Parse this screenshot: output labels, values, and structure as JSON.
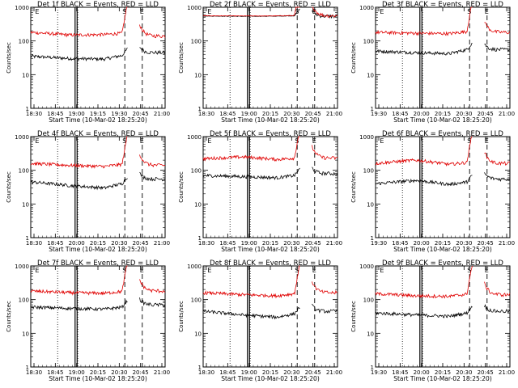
{
  "colors": {
    "events": "#000000",
    "lld": "#e00000",
    "axis": "#000000",
    "background": "#ffffff"
  },
  "chart_data": [
    {
      "type": "line",
      "title": "Det 1f BLACK = Events, RED = LLD",
      "xlabel": "Start Time (10-Mar-02 18:25:20)",
      "ylabel": "Counts/sec",
      "x_tick_labels": [
        "18:30",
        "18:45",
        "19:00",
        "19:15",
        "19:30",
        "20:45",
        "21:00"
      ],
      "y_tick_labels": [
        "1",
        "10",
        "100",
        "1000"
      ],
      "yscale": "log",
      "ylim": [
        1,
        1000
      ],
      "markers": [
        "E",
        "S",
        "E"
      ],
      "grid": false,
      "series": [
        {
          "color": "#000000",
          "approx_level": [
            35,
            30,
            29,
            37,
            null,
            45
          ]
        },
        {
          "color": "#e00000",
          "approx_level": [
            180,
            150,
            155,
            170,
            null,
            140
          ]
        }
      ]
    },
    {
      "type": "line",
      "title": "Det 2f BLACK = Events, RED = LLD",
      "xlabel": "Start Time (10-Mar-02 18:25:20)",
      "ylabel": "Counts/sec",
      "x_tick_labels": [
        "18:30",
        "18:45",
        "19:00",
        "20:15",
        "20:30",
        "20:45",
        "21:00"
      ],
      "y_tick_labels": [
        "1",
        "10",
        "100",
        "1000"
      ],
      "yscale": "log",
      "ylim": [
        1,
        1000
      ],
      "markers": [
        "E",
        "S",
        "E"
      ],
      "grid": false,
      "series": [
        {
          "color": "#000000",
          "approx_level": [
            550,
            540,
            545,
            560,
            null,
            540
          ]
        },
        {
          "color": "#e00000",
          "approx_level": [
            560,
            550,
            555,
            570,
            null,
            560
          ]
        }
      ]
    },
    {
      "type": "line",
      "title": "Det 3f BLACK = Events, RED = LLD",
      "xlabel": "Start Time (10-Mar-02 18:25:20)",
      "ylabel": "Counts/sec",
      "x_tick_labels": [
        "19:30",
        "18:45",
        "20:00",
        "20:15",
        "20:30",
        "20:45",
        "21:00"
      ],
      "y_tick_labels": [
        "1",
        "10",
        "100",
        "1000"
      ],
      "yscale": "log",
      "ylim": [
        1,
        1000
      ],
      "markers": [
        "E",
        "S",
        "E"
      ],
      "grid": false,
      "series": [
        {
          "color": "#000000",
          "approx_level": [
            50,
            45,
            42,
            55,
            null,
            55
          ]
        },
        {
          "color": "#e00000",
          "approx_level": [
            180,
            170,
            165,
            190,
            null,
            180
          ]
        }
      ]
    },
    {
      "type": "line",
      "title": "Det 4f BLACK = Events, RED = LLD",
      "xlabel": "Start Time (10-Mar-02 18:25:20)",
      "ylabel": "Counts/sec",
      "x_tick_labels": [
        "18:30",
        "18:45",
        "20:00",
        "20:15",
        "20:30",
        "20:45",
        "21:00"
      ],
      "y_tick_labels": [
        "1",
        "10",
        "100",
        "1000"
      ],
      "yscale": "log",
      "ylim": [
        1,
        1000
      ],
      "markers": [
        "E",
        "S",
        "E"
      ],
      "grid": false,
      "series": [
        {
          "color": "#000000",
          "approx_level": [
            45,
            35,
            30,
            40,
            null,
            55
          ]
        },
        {
          "color": "#e00000",
          "approx_level": [
            160,
            140,
            130,
            150,
            null,
            140
          ]
        }
      ]
    },
    {
      "type": "line",
      "title": "Det 5f BLACK = Events, RED = LLD",
      "xlabel": "Start Time (10-Mar-02 18:25:20)",
      "ylabel": "Counts/sec",
      "x_tick_labels": [
        "18:30",
        "18:45",
        "19:00",
        "20:15",
        "20:30",
        "20:45",
        "21:00"
      ],
      "y_tick_labels": [
        "1",
        "10",
        "100",
        "1000"
      ],
      "yscale": "log",
      "ylim": [
        1,
        1000
      ],
      "markers": [
        "E",
        "S",
        "E"
      ],
      "grid": false,
      "series": [
        {
          "color": "#000000",
          "approx_level": [
            70,
            65,
            60,
            70,
            null,
            80
          ]
        },
        {
          "color": "#e00000",
          "approx_level": [
            220,
            250,
            210,
            230,
            null,
            230
          ]
        }
      ]
    },
    {
      "type": "line",
      "title": "Det 6f BLACK = Events, RED = LLD",
      "xlabel": "Start Time (10-Mar-02 18:25:20)",
      "ylabel": "Counts/sec",
      "x_tick_labels": [
        "19:30",
        "18:45",
        "20:00",
        "20:15",
        "20:30",
        "20:45",
        "21:00"
      ],
      "y_tick_labels": [
        "1",
        "10",
        "100",
        "1000"
      ],
      "yscale": "log",
      "ylim": [
        1,
        1000
      ],
      "markers": [
        "E",
        "S",
        "E"
      ],
      "grid": false,
      "series": [
        {
          "color": "#000000",
          "approx_level": [
            40,
            50,
            38,
            45,
            null,
            55
          ]
        },
        {
          "color": "#e00000",
          "approx_level": [
            160,
            200,
            150,
            170,
            null,
            160
          ]
        }
      ]
    },
    {
      "type": "line",
      "title": "Det 7f BLACK = Events, RED = LLD",
      "xlabel": "Start Time (10-Mar-02 18:25:20)",
      "ylabel": "Counts/sec",
      "x_tick_labels": [
        "18:30",
        "18:45",
        "19:00",
        "20:15",
        "20:30",
        "20:45",
        "21:00"
      ],
      "y_tick_labels": [
        "1",
        "10",
        "100",
        "1000"
      ],
      "yscale": "log",
      "ylim": [
        1,
        1000
      ],
      "markers": [
        "E",
        "S",
        "E"
      ],
      "grid": false,
      "series": [
        {
          "color": "#000000",
          "approx_level": [
            60,
            55,
            52,
            60,
            null,
            70
          ]
        },
        {
          "color": "#e00000",
          "approx_level": [
            180,
            160,
            155,
            175,
            null,
            180
          ]
        }
      ]
    },
    {
      "type": "line",
      "title": "Det 8f BLACK = Events, RED = LLD",
      "xlabel": "Start Time (10-Mar-02 18:25:20)",
      "ylabel": "Counts/sec",
      "x_tick_labels": [
        "18:30",
        "18:45",
        "19:00",
        "20:15",
        "20:30",
        "20:45",
        "21:00"
      ],
      "y_tick_labels": [
        "1",
        "10",
        "100",
        "1000"
      ],
      "yscale": "log",
      "ylim": [
        1,
        1000
      ],
      "markers": [
        "E",
        "S",
        "E"
      ],
      "grid": false,
      "series": [
        {
          "color": "#000000",
          "approx_level": [
            45,
            35,
            30,
            38,
            null,
            45
          ]
        },
        {
          "color": "#e00000",
          "approx_level": [
            160,
            140,
            130,
            150,
            null,
            160
          ]
        }
      ]
    },
    {
      "type": "line",
      "title": "Det 9f BLACK = Events, RED = LLD",
      "xlabel": "Start Time (10-Mar-02 18:25:20)",
      "ylabel": "Counts/sec",
      "x_tick_labels": [
        "19:30",
        "18:45",
        "20:00",
        "20:15",
        "20:30",
        "20:45",
        "21:00"
      ],
      "y_tick_labels": [
        "1",
        "10",
        "100",
        "1000"
      ],
      "yscale": "log",
      "ylim": [
        1,
        1000
      ],
      "markers": [
        "E",
        "S",
        "E"
      ],
      "grid": false,
      "series": [
        {
          "color": "#000000",
          "approx_level": [
            40,
            35,
            32,
            40,
            null,
            45
          ]
        },
        {
          "color": "#e00000",
          "approx_level": [
            150,
            130,
            125,
            145,
            null,
            140
          ]
        }
      ]
    }
  ]
}
